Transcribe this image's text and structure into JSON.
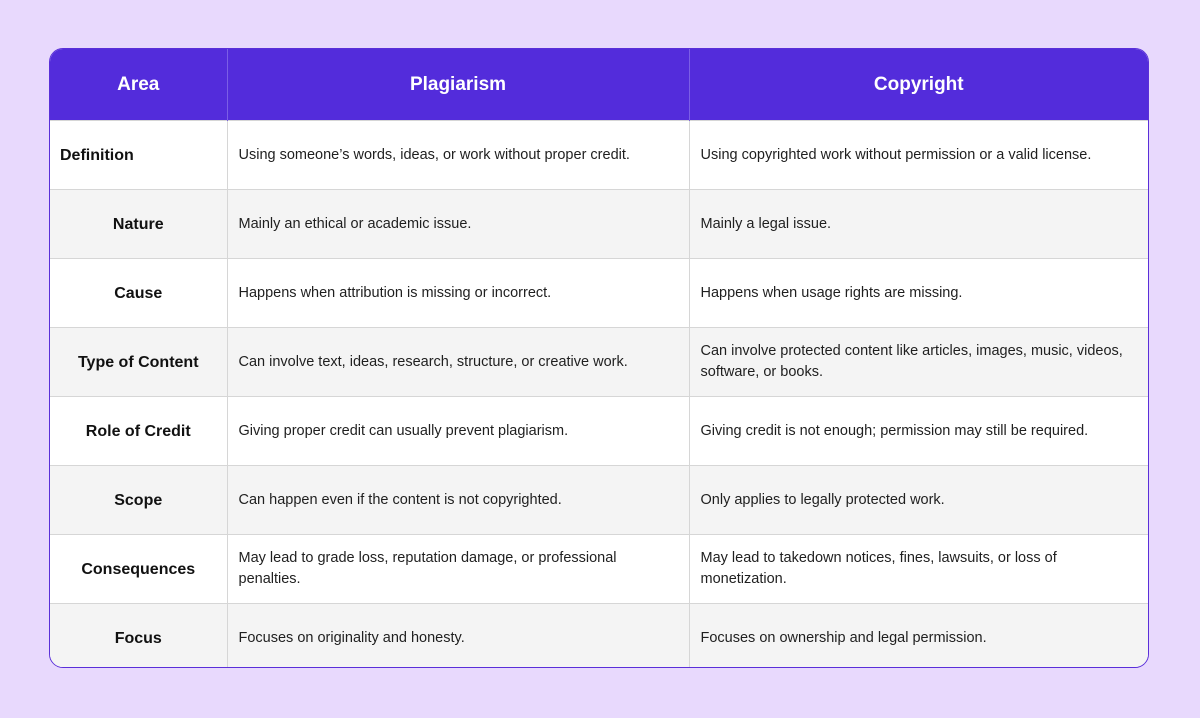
{
  "header": {
    "area": "Area",
    "plagiarism": "Plagiarism",
    "copyright": "Copyright"
  },
  "rows": [
    {
      "area": "Definition",
      "plagiarism": "Using someone’s words, ideas, or work without proper credit.",
      "copyright": "Using copyrighted work without permission or a valid license."
    },
    {
      "area": "Nature",
      "plagiarism": "Mainly an ethical or academic issue.",
      "copyright": "Mainly a legal issue."
    },
    {
      "area": "Cause",
      "plagiarism": "Happens when attribution is missing or incorrect.",
      "copyright": "Happens when usage rights are missing."
    },
    {
      "area": "Type of Content",
      "plagiarism": "Can involve text, ideas, research, structure, or creative work.",
      "copyright": "Can involve protected content like articles, images, music, videos, software, or books."
    },
    {
      "area": "Role of Credit",
      "plagiarism": "Giving proper credit can usually prevent plagiarism.",
      "copyright": "Giving credit is not enough; permission may still be required."
    },
    {
      "area": "Scope",
      "plagiarism": "Can happen even if the content is not copyrighted.",
      "copyright": "Only applies to legally protected work."
    },
    {
      "area": "Consequences",
      "plagiarism": "May lead to grade loss, reputation damage, or professional penalties.",
      "copyright": "May lead to takedown notices, fines, lawsuits, or loss of monetization."
    },
    {
      "area": "Focus",
      "plagiarism": "Focuses on originality and honesty.",
      "copyright": "Focuses on ownership and legal permission."
    }
  ]
}
